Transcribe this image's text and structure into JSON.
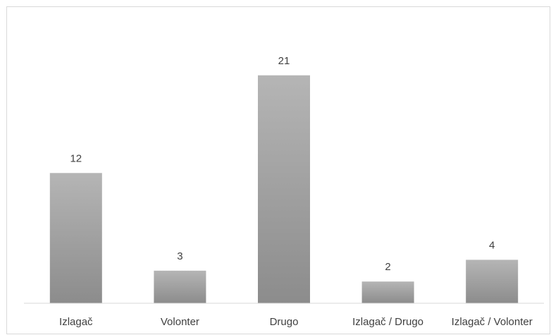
{
  "chart_data": {
    "type": "bar",
    "categories": [
      "Izlagač",
      "Volonter",
      "Drugo",
      "Izlagač / Drugo",
      "Izlagač / Volonter"
    ],
    "values": [
      12,
      3,
      21,
      2,
      4
    ],
    "title": "",
    "xlabel": "",
    "ylabel": "",
    "ylim": [
      0,
      23
    ],
    "grid": false,
    "legend": "none",
    "bar_color_top": "#b5b5b5",
    "bar_color_bottom": "#8c8c8c",
    "axis_color": "#d9d9d9",
    "label_color": "#404040"
  }
}
